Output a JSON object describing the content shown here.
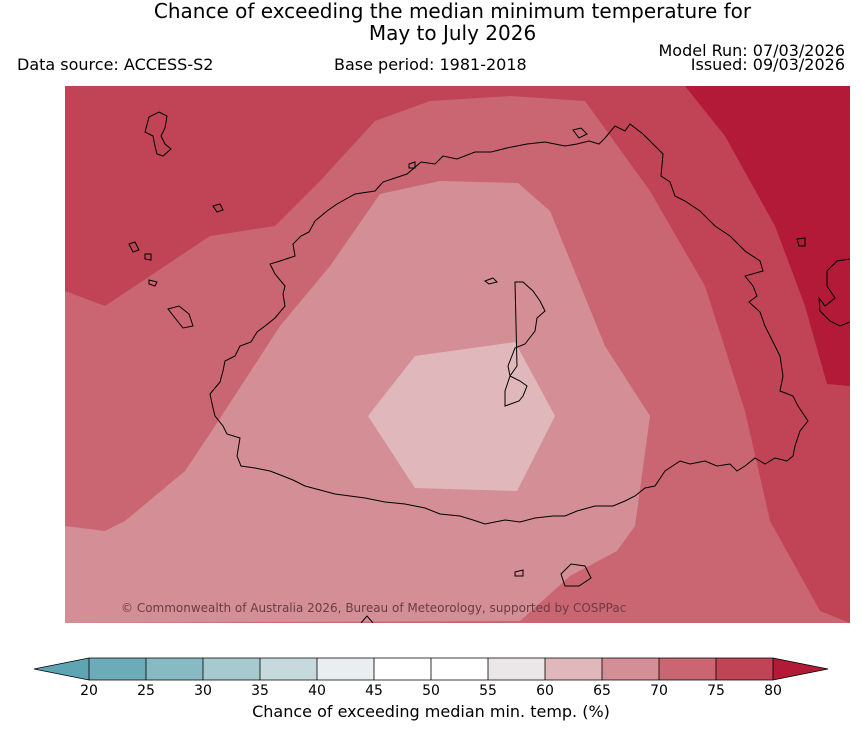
{
  "header": {
    "title_line1": "Chance of exceeding the median minimum temperature for",
    "title_line2": "May to July 2026",
    "data_source": "Data source: ACCESS-S2",
    "base_period": "Base period: 1981-2018",
    "model_run": "Model Run: 07/03/2026",
    "issued": "Issued: 09/03/2026"
  },
  "map": {
    "copyright": "© Commonwealth of Australia 2026, Bureau of Meteorology, supported by COSPPac",
    "colors": {
      "band_80_plus": "#b21a38",
      "band_75_80": "#c04455",
      "band_70_75": "#ca6671",
      "band_65_70": "#d48e95",
      "band_60_65": "#e0b8bb",
      "coastline": "#000000"
    }
  },
  "colorbar": {
    "label": "Chance of exceeding median min. temp. (%)",
    "ticks": [
      "20",
      "25",
      "30",
      "35",
      "40",
      "45",
      "50",
      "55",
      "60",
      "65",
      "70",
      "75",
      "80"
    ],
    "colors": {
      "lt20": "#5fa4b2",
      "c20_25": "#6cabb8",
      "c25_30": "#88bac3",
      "c30_35": "#a7cace",
      "c35_40": "#c6dadd",
      "c40_45": "#e9eef0",
      "c45_50": "#ffffff",
      "c50_55": "#ffffff",
      "c55_60": "#ebe6e7",
      "c60_65": "#e0b8bb",
      "c65_70": "#d48e95",
      "c70_75": "#ca6671",
      "c75_80": "#c04455",
      "gt80": "#b21a38"
    }
  }
}
